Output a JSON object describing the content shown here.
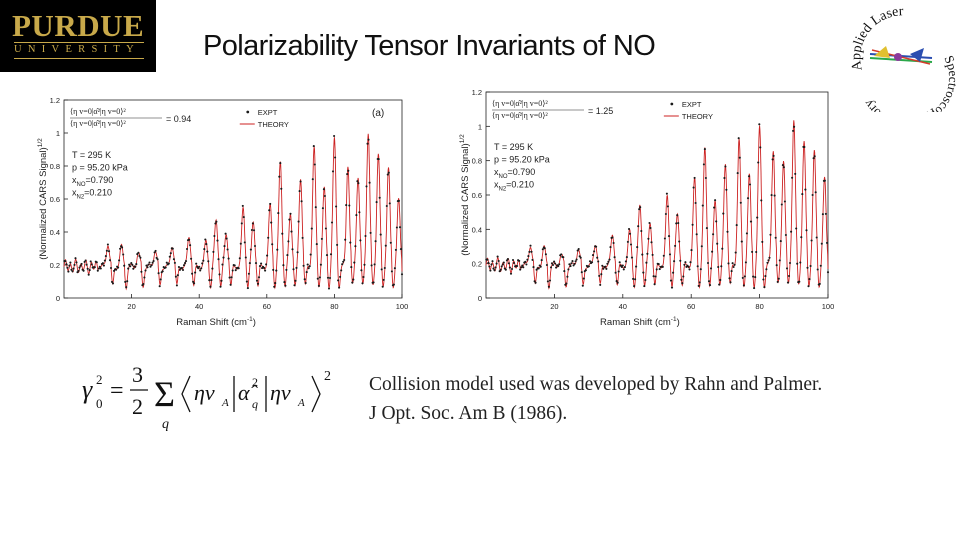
{
  "header": {
    "logo": {
      "wordmark": "PURDUE",
      "subline": "UNIVERSITY"
    },
    "title": "Polarizability Tensor Invariants of NO",
    "lab_logo": {
      "text_top": "Applied Laser",
      "text_bottom": "Spectroscopy Laboratory"
    }
  },
  "colors": {
    "gold": "#c8a94a",
    "expt": "#1a1a1a",
    "theory": "#cc2222"
  },
  "chart_data": [
    {
      "type": "line",
      "panel_label": "(a)",
      "ylabel": "(Normalized CARS Signal)",
      "ylabel_exp": "1/2",
      "xlabel": "Raman Shift (cm",
      "xlabel_exp": "-1",
      "xlabel_tail": ")",
      "xlim": [
        0,
        100
      ],
      "ylim": [
        0,
        1.2
      ],
      "xticks": [
        "20",
        "40",
        "60",
        "80",
        "100"
      ],
      "yticks": [
        "0",
        "0.2",
        "0.4",
        "0.6",
        "0.8",
        "1",
        "1.2"
      ],
      "ratio_value": "= 0.94",
      "conditions": [
        "T = 295 K",
        "p = 95.20 kPa",
        "x",
        "x"
      ],
      "cond_full": [
        "T = 295 K",
        "p = 95.20 kPa",
        "xNO=0.790",
        "xN2=0.210"
      ],
      "legend": [
        "EXPT",
        "THEORY"
      ],
      "baseline": 0.2,
      "peaks": [
        {
          "x": 13,
          "h": 0.34
        },
        {
          "x": 17,
          "h": 0.32
        },
        {
          "x": 22,
          "h": 0.28
        },
        {
          "x": 27,
          "h": 0.3
        },
        {
          "x": 32,
          "h": 0.33
        },
        {
          "x": 37,
          "h": 0.38
        },
        {
          "x": 42,
          "h": 0.35
        },
        {
          "x": 45,
          "h": 0.48
        },
        {
          "x": 48,
          "h": 0.4
        },
        {
          "x": 53,
          "h": 0.55
        },
        {
          "x": 56,
          "h": 0.47
        },
        {
          "x": 61,
          "h": 0.57
        },
        {
          "x": 64,
          "h": 0.83
        },
        {
          "x": 67,
          "h": 0.52
        },
        {
          "x": 70,
          "h": 0.74
        },
        {
          "x": 74,
          "h": 0.92
        },
        {
          "x": 77,
          "h": 0.67
        },
        {
          "x": 80,
          "h": 0.97
        },
        {
          "x": 84,
          "h": 0.82
        },
        {
          "x": 87,
          "h": 0.75
        },
        {
          "x": 90,
          "h": 1.01
        },
        {
          "x": 93,
          "h": 0.88
        },
        {
          "x": 96,
          "h": 0.79
        },
        {
          "x": 99,
          "h": 0.6
        }
      ]
    },
    {
      "type": "line",
      "panel_label": "",
      "ylabel": "(Normalized CARS Signal)",
      "ylabel_exp": "1/2",
      "xlabel": "Raman Shift (cm",
      "xlabel_exp": "-1",
      "xlabel_tail": ")",
      "xlim": [
        0,
        100
      ],
      "ylim": [
        0,
        1.2
      ],
      "xticks": [
        "20",
        "40",
        "60",
        "80",
        "100"
      ],
      "yticks": [
        "0",
        "0.2",
        "0.4",
        "0.6",
        "0.8",
        "1",
        "1.2"
      ],
      "ratio_value": "= 1.25",
      "conditions": [
        "T = 295 K",
        "p = 95.20 kPa",
        "x",
        "x"
      ],
      "cond_full": [
        "T = 295 K",
        "p = 95.20 kPa",
        "xNO=0.790",
        "xN2=0.210"
      ],
      "legend": [
        "EXPT",
        "THEORY"
      ],
      "baseline": 0.2,
      "peaks": [
        {
          "x": 13,
          "h": 0.32
        },
        {
          "x": 17,
          "h": 0.3
        },
        {
          "x": 22,
          "h": 0.26
        },
        {
          "x": 27,
          "h": 0.3
        },
        {
          "x": 32,
          "h": 0.33
        },
        {
          "x": 37,
          "h": 0.38
        },
        {
          "x": 42,
          "h": 0.4
        },
        {
          "x": 45,
          "h": 0.55
        },
        {
          "x": 48,
          "h": 0.45
        },
        {
          "x": 53,
          "h": 0.6
        },
        {
          "x": 56,
          "h": 0.5
        },
        {
          "x": 61,
          "h": 0.7
        },
        {
          "x": 64,
          "h": 0.88
        },
        {
          "x": 67,
          "h": 0.58
        },
        {
          "x": 70,
          "h": 0.8
        },
        {
          "x": 74,
          "h": 0.93
        },
        {
          "x": 77,
          "h": 0.72
        },
        {
          "x": 80,
          "h": 1.0
        },
        {
          "x": 84,
          "h": 0.88
        },
        {
          "x": 87,
          "h": 0.82
        },
        {
          "x": 90,
          "h": 1.05
        },
        {
          "x": 93,
          "h": 0.92
        },
        {
          "x": 96,
          "h": 0.86
        },
        {
          "x": 99,
          "h": 0.7
        }
      ]
    }
  ],
  "formula": {
    "lhs": "γ",
    "lhs_sup": "2",
    "lhs_sub": "0",
    "equals": "=",
    "numerator": "3",
    "denominator": "2",
    "sum": "Σ",
    "sum_index": "q",
    "eta_a": "ηv",
    "eta_sub": "A",
    "alpha": "α̂",
    "alpha_sup": "2",
    "alpha_sub": "q",
    "power": "2"
  },
  "citation": {
    "line1": "Collision model used was developed by Rahn and Palmer.",
    "line2": "J Opt. Soc. Am B (1986)."
  }
}
